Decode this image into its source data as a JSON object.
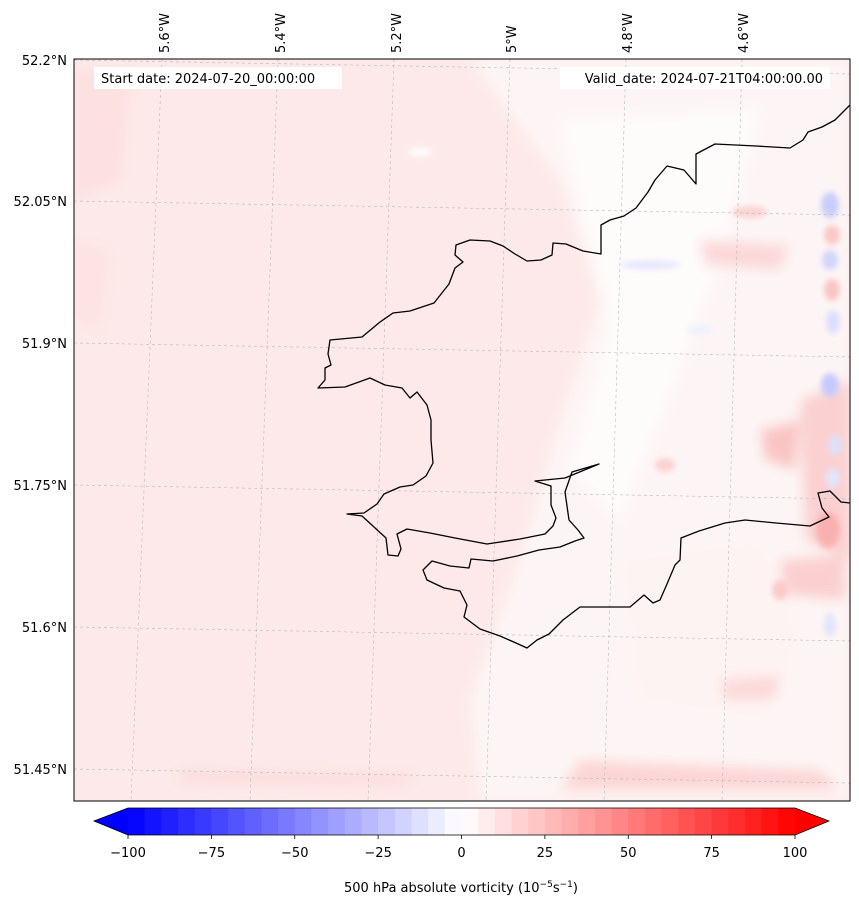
{
  "map": {
    "start_label": "Start date: 2024-07-20_00:00:00",
    "valid_label": "Valid_date: 2024-07-21T04:00:00.00",
    "lon_labels": [
      "5.6°W",
      "5.4°W",
      "5.2°W",
      "5°W",
      "4.8°W",
      "4.6°W"
    ],
    "lat_labels": [
      "52.2°N",
      "52.05°N",
      "51.9°N",
      "51.75°N",
      "51.6°N",
      "51.45°N"
    ]
  },
  "colorbar": {
    "ticks": [
      "−100",
      "−75",
      "−50",
      "−25",
      "0",
      "25",
      "50",
      "75",
      "100"
    ],
    "label_main": "500 hPa absolute vorticity (10",
    "label_exp1": "−5",
    "label_mid": "s",
    "label_exp2": "−1",
    "label_end": ")",
    "min": -100,
    "max": 100,
    "colors": {
      "negative_end": "#0000ff",
      "center": "#ffffff",
      "positive_end": "#ff0000"
    }
  }
}
